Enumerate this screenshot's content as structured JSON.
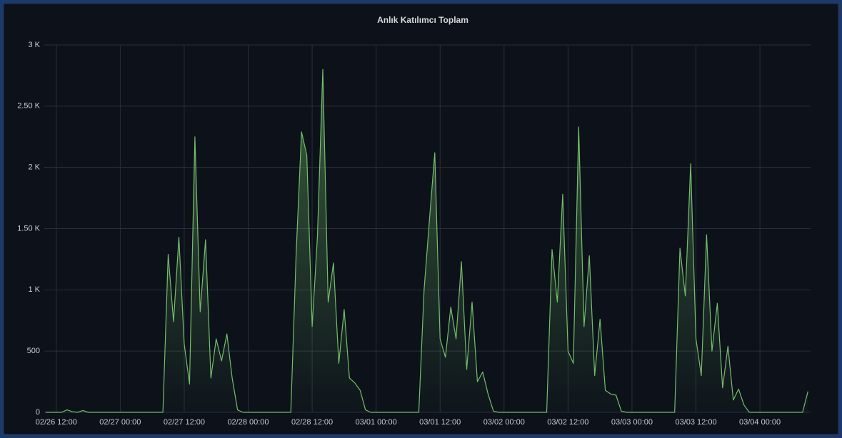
{
  "chart_data": {
    "type": "line",
    "title": "Anlık Katılımcı Toplam",
    "x": [
      "02/26 10:00",
      "02/26 11:00",
      "02/26 12:00",
      "02/26 13:00",
      "02/26 14:00",
      "02/26 15:00",
      "02/26 16:00",
      "02/26 17:00",
      "02/26 18:00",
      "02/26 19:00",
      "02/26 20:00",
      "02/26 21:00",
      "02/26 22:00",
      "02/26 23:00",
      "02/27 00:00",
      "02/27 01:00",
      "02/27 02:00",
      "02/27 03:00",
      "02/27 04:00",
      "02/27 05:00",
      "02/27 06:00",
      "02/27 07:00",
      "02/27 08:00",
      "02/27 09:00",
      "02/27 10:00",
      "02/27 11:00",
      "02/27 12:00",
      "02/27 13:00",
      "02/27 14:00",
      "02/27 15:00",
      "02/27 16:00",
      "02/27 17:00",
      "02/27 18:00",
      "02/27 19:00",
      "02/27 20:00",
      "02/27 21:00",
      "02/27 22:00",
      "02/27 23:00",
      "02/28 00:00",
      "02/28 01:00",
      "02/28 02:00",
      "02/28 03:00",
      "02/28 04:00",
      "02/28 05:00",
      "02/28 06:00",
      "02/28 07:00",
      "02/28 08:00",
      "02/28 09:00",
      "02/28 10:00",
      "02/28 11:00",
      "02/28 12:00",
      "02/28 13:00",
      "02/28 14:00",
      "02/28 15:00",
      "02/28 16:00",
      "02/28 17:00",
      "02/28 18:00",
      "02/28 19:00",
      "02/28 20:00",
      "02/28 21:00",
      "02/28 22:00",
      "02/28 23:00",
      "03/01 00:00",
      "03/01 01:00",
      "03/01 02:00",
      "03/01 03:00",
      "03/01 04:00",
      "03/01 05:00",
      "03/01 06:00",
      "03/01 07:00",
      "03/01 08:00",
      "03/01 09:00",
      "03/01 10:00",
      "03/01 11:00",
      "03/01 12:00",
      "03/01 13:00",
      "03/01 14:00",
      "03/01 15:00",
      "03/01 16:00",
      "03/01 17:00",
      "03/01 18:00",
      "03/01 19:00",
      "03/01 20:00",
      "03/01 21:00",
      "03/01 22:00",
      "03/01 23:00",
      "03/02 00:00",
      "03/02 01:00",
      "03/02 02:00",
      "03/02 03:00",
      "03/02 04:00",
      "03/02 05:00",
      "03/02 06:00",
      "03/02 07:00",
      "03/02 08:00",
      "03/02 09:00",
      "03/02 10:00",
      "03/02 11:00",
      "03/02 12:00",
      "03/02 13:00",
      "03/02 14:00",
      "03/02 15:00",
      "03/02 16:00",
      "03/02 17:00",
      "03/02 18:00",
      "03/02 19:00",
      "03/02 20:00",
      "03/02 21:00",
      "03/02 22:00",
      "03/02 23:00",
      "03/03 00:00",
      "03/03 01:00",
      "03/03 02:00",
      "03/03 03:00",
      "03/03 04:00",
      "03/03 05:00",
      "03/03 06:00",
      "03/03 07:00",
      "03/03 08:00",
      "03/03 09:00",
      "03/03 10:00",
      "03/03 11:00",
      "03/03 12:00",
      "03/03 13:00",
      "03/03 14:00",
      "03/03 15:00",
      "03/03 16:00",
      "03/03 17:00",
      "03/03 18:00",
      "03/03 19:00",
      "03/03 20:00",
      "03/03 21:00",
      "03/03 22:00",
      "03/03 23:00",
      "03/04 00:00",
      "03/04 01:00",
      "03/04 02:00",
      "03/04 03:00",
      "03/04 04:00",
      "03/04 05:00",
      "03/04 06:00",
      "03/04 07:00",
      "03/04 08:00",
      "03/04 09:00"
    ],
    "values": [
      0,
      0,
      0,
      0,
      20,
      5,
      0,
      15,
      0,
      0,
      0,
      0,
      0,
      0,
      0,
      0,
      0,
      0,
      0,
      0,
      0,
      0,
      0,
      1290,
      740,
      1430,
      560,
      230,
      2250,
      820,
      1410,
      280,
      600,
      420,
      640,
      280,
      20,
      0,
      0,
      0,
      0,
      0,
      0,
      0,
      0,
      0,
      0,
      1300,
      2290,
      2100,
      700,
      1440,
      2800,
      900,
      1220,
      400,
      840,
      280,
      240,
      180,
      20,
      0,
      0,
      0,
      0,
      0,
      0,
      0,
      0,
      0,
      0,
      1000,
      1570,
      2120,
      600,
      450,
      860,
      600,
      1230,
      350,
      900,
      250,
      330,
      150,
      10,
      0,
      0,
      0,
      0,
      0,
      0,
      0,
      0,
      0,
      0,
      1330,
      900,
      1780,
      500,
      400,
      2330,
      700,
      1280,
      300,
      760,
      180,
      150,
      140,
      10,
      0,
      0,
      0,
      0,
      0,
      0,
      0,
      0,
      0,
      0,
      1340,
      950,
      2030,
      600,
      300,
      1450,
      500,
      890,
      200,
      540,
      100,
      190,
      60,
      0,
      0,
      0,
      0,
      0,
      0,
      0,
      0,
      0,
      0,
      0,
      170
    ],
    "color": "#73bf69",
    "xlim": [
      "02/26 09:45",
      "03/04 09:30"
    ],
    "xticks": [
      "02/26 12:00",
      "02/27 00:00",
      "02/27 12:00",
      "02/28 00:00",
      "02/28 12:00",
      "03/01 00:00",
      "03/01 12:00",
      "03/02 00:00",
      "03/02 12:00",
      "03/03 00:00",
      "03/03 12:00",
      "03/04 00:00"
    ],
    "ylim": [
      0,
      3000
    ],
    "yticks": [
      0,
      500,
      {
        "value": 1000,
        "label": "1 K"
      },
      {
        "value": 1500,
        "label": "1.50 K"
      },
      {
        "value": 2000,
        "label": "2 K"
      },
      {
        "value": 2500,
        "label": "2.50 K"
      },
      {
        "value": 3000,
        "label": "3 K"
      }
    ],
    "grid": true
  }
}
